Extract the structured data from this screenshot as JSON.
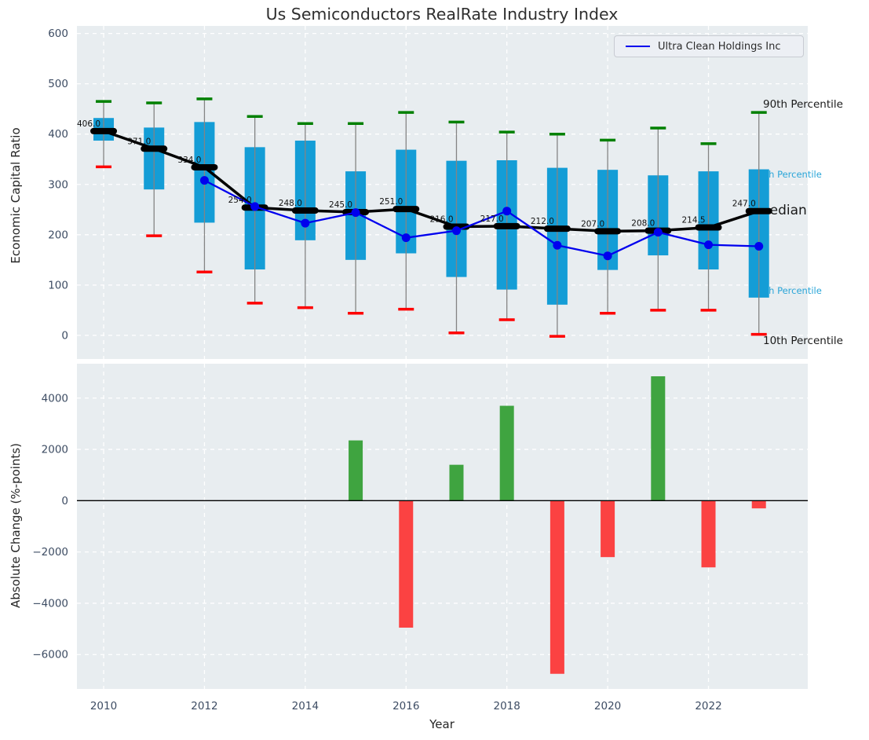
{
  "figure": {
    "title": "Us Semiconductors RealRate Industry Index"
  },
  "axis_labels": {
    "top_y": "Economic Capital Ratio",
    "bottom_y": "Absolute Change (%-points)",
    "x": "Year"
  },
  "legend": {
    "label": "Ultra Clean Holdings Inc"
  },
  "annotations": {
    "p90": "90th Percentile",
    "p75": "75th Percentile",
    "median": "Median",
    "p25": "25th Percentile",
    "p10": "10th Percentile"
  },
  "colors": {
    "figure_bg": "#ffffff",
    "axes_bg": "#e8edf0",
    "grid": "#ffffff",
    "box_fill": "#149dd6",
    "whisker": "#848484",
    "cap_high": "#008000",
    "cap_low": "#fe0000",
    "median_line": "#000000",
    "company_line": "#0000ee",
    "bar_positive": "#3fa440",
    "bar_negative": "#fb4242",
    "tick_label": "#3d4c63",
    "annotation_dark": "#1a1a1a",
    "annotation_cyan": "#29a5d8",
    "data_label": "#111111",
    "zero_line": "#000000"
  },
  "chart_data": [
    {
      "type": "box-whisker-with-lines",
      "title": "Us Semiconductors RealRate Industry Index",
      "ylabel": "Economic Capital Ratio",
      "x": [
        2010,
        2011,
        2012,
        2013,
        2014,
        2015,
        2016,
        2017,
        2018,
        2019,
        2020,
        2021,
        2022,
        2023
      ],
      "xticks": [
        2010,
        2012,
        2014,
        2016,
        2018,
        2020,
        2022
      ],
      "yticks": [
        0,
        100,
        200,
        300,
        400,
        500,
        600
      ],
      "xlim": [
        2009.47,
        2023.97
      ],
      "ylim": [
        -47,
        615
      ],
      "grid": true,
      "percentiles": {
        "p90": [
          465,
          462,
          470,
          435,
          421,
          421,
          443,
          424,
          404,
          400,
          388,
          412,
          381,
          443
        ],
        "p75": [
          432,
          413,
          424,
          374,
          387,
          326,
          369,
          347,
          348,
          333,
          329,
          318,
          326,
          330
        ],
        "median": [
          406,
          371,
          334,
          254,
          248,
          245,
          251,
          216,
          217,
          212,
          207,
          208,
          214.5,
          247
        ],
        "p25": [
          387,
          290,
          224,
          131,
          189,
          150,
          163,
          116,
          91,
          61,
          130,
          159,
          131,
          75
        ],
        "p10": [
          335,
          198,
          126,
          64,
          55,
          44,
          52,
          5,
          31,
          -2,
          44,
          50,
          50,
          2
        ]
      },
      "median_labels": [
        "406.0",
        "371.0",
        "334.0",
        "254.0",
        "248.0",
        "245.0",
        "251.0",
        "216.0",
        "217.0",
        "212.0",
        "207.0",
        "208.0",
        "214.5",
        "247.0"
      ],
      "company_series": {
        "name": "Ultra Clean Holdings Inc",
        "x": [
          2012,
          2013,
          2014,
          2015,
          2016,
          2017,
          2018,
          2019,
          2020,
          2021,
          2022,
          2023
        ],
        "values": [
          308,
          256,
          223,
          244,
          194,
          208,
          247,
          179,
          158,
          205,
          180,
          177
        ]
      }
    },
    {
      "type": "bar",
      "ylabel": "Absolute Change (%-points)",
      "xlabel": "Year",
      "x": [
        2015,
        2016,
        2017,
        2018,
        2019,
        2020,
        2021,
        2022,
        2023
      ],
      "values": [
        2350,
        -4950,
        1400,
        3700,
        -6750,
        -2200,
        4850,
        -2600,
        -300
      ],
      "xticks": [
        2010,
        2012,
        2014,
        2016,
        2018,
        2020,
        2022
      ],
      "yticks": [
        4000,
        2000,
        0,
        -2000,
        -4000,
        -6000
      ],
      "xlim": [
        2009.47,
        2023.97
      ],
      "ylim": [
        -7340,
        5340
      ],
      "grid": true,
      "zero_line": true
    }
  ]
}
